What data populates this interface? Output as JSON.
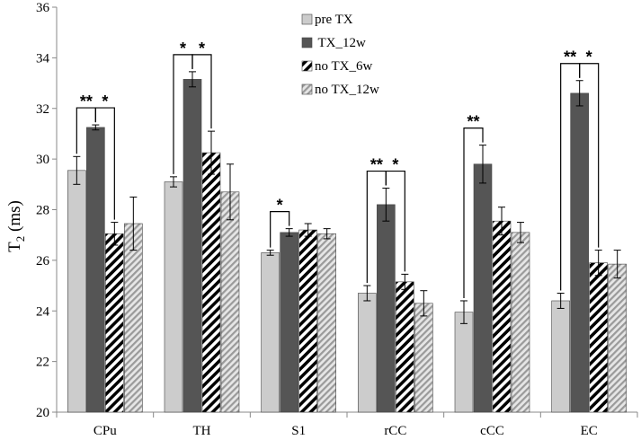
{
  "chart_data": {
    "type": "bar",
    "title": "",
    "xlabel": "",
    "ylabel": "T2 (ms)",
    "ylabel_main": "T",
    "ylabel_sub": "2",
    "ylabel_unit": " (ms)",
    "ylim": [
      20,
      36
    ],
    "yticks": [
      20,
      22,
      24,
      26,
      28,
      30,
      32,
      34,
      36
    ],
    "grid": false,
    "legend_position": "top-center",
    "categories": [
      "CPu",
      "TH",
      "S1",
      "rCC",
      "cCC",
      "EC"
    ],
    "series": [
      {
        "name": "pre TX",
        "values": [
          29.55,
          29.1,
          26.3,
          24.7,
          23.95,
          24.4
        ],
        "errors": [
          0.55,
          0.2,
          0.1,
          0.3,
          0.45,
          0.3
        ],
        "style": "light",
        "color": "#c8c8c8"
      },
      {
        "name": " TX_12w",
        "values": [
          31.25,
          33.15,
          27.1,
          28.2,
          29.8,
          32.6
        ],
        "errors": [
          0.1,
          0.3,
          0.15,
          0.65,
          0.75,
          0.5
        ],
        "style": "dark",
        "color": "#555555"
      },
      {
        "name": "no TX_6w",
        "values": [
          27.05,
          30.25,
          27.2,
          25.15,
          27.55,
          25.9
        ],
        "errors": [
          0.45,
          0.85,
          0.25,
          0.3,
          0.55,
          0.5
        ],
        "style": "hatch",
        "color": "#000000"
      },
      {
        "name": "no TX_12w",
        "values": [
          27.45,
          28.7,
          27.05,
          24.3,
          27.1,
          25.85
        ],
        "errors": [
          1.05,
          1.1,
          0.2,
          0.5,
          0.4,
          0.55
        ],
        "style": "lighthatch",
        "color": "#a0a0a0"
      }
    ],
    "significance": [
      {
        "category": "CPu",
        "from": 0,
        "to": 1,
        "label": "**"
      },
      {
        "category": "CPu",
        "from": 1,
        "to": 2,
        "label": "*"
      },
      {
        "category": "TH",
        "from": 0,
        "to": 1,
        "label": "*"
      },
      {
        "category": "TH",
        "from": 1,
        "to": 2,
        "label": "*"
      },
      {
        "category": "S1",
        "from": 0,
        "to": 1,
        "label": "*"
      },
      {
        "category": "rCC",
        "from": 0,
        "to": 1,
        "label": "**"
      },
      {
        "category": "rCC",
        "from": 1,
        "to": 2,
        "label": "*"
      },
      {
        "category": "cCC",
        "from": 0,
        "to": 1,
        "label": "**"
      },
      {
        "category": "EC",
        "from": 0,
        "to": 1,
        "label": "**"
      },
      {
        "category": "EC",
        "from": 1,
        "to": 2,
        "label": "*"
      }
    ]
  }
}
